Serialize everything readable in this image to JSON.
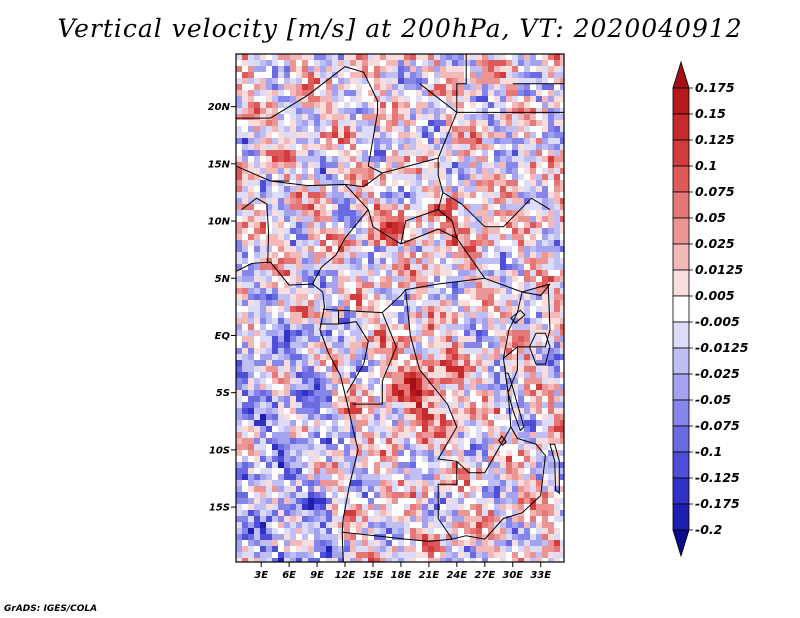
{
  "chart_data": {
    "type": "heatmap",
    "title": "Vertical velocity [m/s] at 200hPa, VT: 2020040912",
    "xlabel": "",
    "ylabel": "",
    "x_ticks": [
      "3E",
      "6E",
      "9E",
      "12E",
      "15E",
      "18E",
      "21E",
      "24E",
      "27E",
      "30E",
      "33E"
    ],
    "x_tick_values": [
      3,
      6,
      9,
      12,
      15,
      18,
      21,
      24,
      27,
      30,
      33
    ],
    "y_ticks": [
      "20N",
      "15N",
      "10N",
      "5N",
      "EQ",
      "5S",
      "10S",
      "15S"
    ],
    "y_tick_values": [
      20,
      15,
      10,
      5,
      0,
      -5,
      -10,
      -15
    ],
    "xlim": [
      0.3,
      35.5
    ],
    "ylim": [
      -19.8,
      24.6
    ],
    "colorbar": {
      "levels": [
        "0.175",
        "0.15",
        "0.125",
        "0.1",
        "0.075",
        "0.05",
        "0.025",
        "0.0125",
        "0.005",
        "-0.005",
        "-0.0125",
        "-0.025",
        "-0.05",
        "-0.075",
        "-0.1",
        "-0.125",
        "-0.175",
        "-0.2"
      ],
      "colors": [
        "#a50f15",
        "#b5191c",
        "#c62a2a",
        "#d33c3c",
        "#de5a5a",
        "#e57777",
        "#ec9595",
        "#f3b8b8",
        "#f9dcdc",
        "#ffffff",
        "#dcdcf9",
        "#bfbff5",
        "#a3a3ef",
        "#8686ea",
        "#6a6ae2",
        "#4e4ed8",
        "#3232c6",
        "#1e1eb0",
        "#0b0b8c"
      ]
    },
    "field_summary": "Mixed positive (red, upward) and negative (blue, downward) vertical velocity over Central Africa; strongest ascent over Congo basin (~5S, 20E) and along ~10N; broad weak descent over the South Atlantic."
  },
  "footer": {
    "credit": "GrADS: IGES/COLA"
  }
}
